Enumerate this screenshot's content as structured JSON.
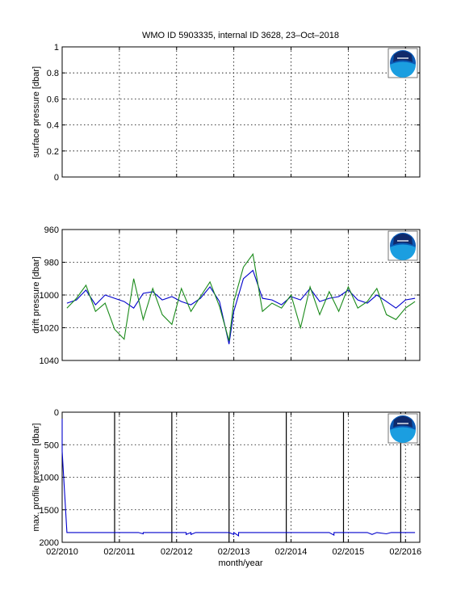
{
  "title": "WMO ID 5903335, internal ID 3628, 23–Oct–2018",
  "colors": {
    "blue": "#0000cc",
    "green": "#1a8a1a",
    "grid": "#000000",
    "noaa_blue": "#0a5ab5",
    "noaa_navy": "#102a6b"
  },
  "icons": [
    "noaa-logo-icon",
    "noaa-logo-icon",
    "noaa-logo-icon"
  ],
  "chart_data": [
    {
      "type": "line",
      "ylabel": "surface pressure [dbar]",
      "ylim": [
        0,
        1
      ],
      "yticks": [
        "0",
        "0.2",
        "0.4",
        "0.6",
        "0.8",
        "1"
      ],
      "xlim": [
        "2010-02",
        "2016-05"
      ],
      "grid": true,
      "series": []
    },
    {
      "type": "line",
      "ylabel": "drift pressure [dbar]",
      "ylim": [
        960,
        1040
      ],
      "y_reversed": true,
      "yticks": [
        "960",
        "980",
        "1000",
        "1020",
        "1040"
      ],
      "xlim": [
        "2010-02",
        "2016-05"
      ],
      "grid": true,
      "series": [
        {
          "color": "blue",
          "x": [
            "2010-03",
            "2010-05",
            "2010-07",
            "2010-09",
            "2010-11",
            "2011-01",
            "2011-03",
            "2011-05",
            "2011-07",
            "2011-09",
            "2011-11",
            "2012-01",
            "2012-03",
            "2012-05",
            "2012-07",
            "2012-09",
            "2012-11",
            "2013-01",
            "2013-02",
            "2013-04",
            "2013-06",
            "2013-08",
            "2013-10",
            "2013-12",
            "2014-02",
            "2014-04",
            "2014-06",
            "2014-08",
            "2014-10",
            "2014-12",
            "2015-02",
            "2015-04",
            "2015-06",
            "2015-08",
            "2015-10",
            "2015-12",
            "2016-02",
            "2016-04"
          ],
          "y": [
            1005,
            1003,
            997,
            1006,
            1000,
            1002,
            1004,
            1008,
            999,
            998,
            1003,
            1001,
            1004,
            1006,
            1002,
            995,
            1004,
            1030,
            1010,
            990,
            985,
            1002,
            1003,
            1006,
            1001,
            1003,
            996,
            1004,
            1002,
            1001,
            997,
            1003,
            1005,
            1000,
            1004,
            1008,
            1003,
            1002
          ]
        },
        {
          "color": "green",
          "x": [
            "2010-03",
            "2010-05",
            "2010-07",
            "2010-09",
            "2010-11",
            "2011-01",
            "2011-03",
            "2011-05",
            "2011-07",
            "2011-09",
            "2011-11",
            "2012-01",
            "2012-03",
            "2012-05",
            "2012-07",
            "2012-09",
            "2012-11",
            "2013-01",
            "2013-02",
            "2013-04",
            "2013-06",
            "2013-08",
            "2013-10",
            "2013-12",
            "2014-02",
            "2014-04",
            "2014-06",
            "2014-08",
            "2014-10",
            "2014-12",
            "2015-02",
            "2015-04",
            "2015-06",
            "2015-08",
            "2015-10",
            "2015-12",
            "2016-02",
            "2016-04"
          ],
          "y": [
            1008,
            1002,
            994,
            1010,
            1005,
            1021,
            1027,
            990,
            1015,
            996,
            1012,
            1018,
            996,
            1010,
            1001,
            992,
            1007,
            1028,
            1004,
            983,
            975,
            1010,
            1005,
            1008,
            1000,
            1020,
            995,
            1012,
            998,
            1010,
            995,
            1008,
            1004,
            996,
            1012,
            1015,
            1008,
            1004
          ]
        }
      ]
    },
    {
      "type": "line",
      "ylabel": "max. profile pressure [dbar]",
      "xlabel": "month/year",
      "ylim": [
        0,
        2000
      ],
      "y_reversed": true,
      "yticks": [
        "0",
        "500",
        "1000",
        "1500",
        "2000"
      ],
      "xlim": [
        "2010-02",
        "2016-05"
      ],
      "xticks": [
        "02/2010",
        "02/2011",
        "02/2012",
        "02/2013",
        "02/2014",
        "02/2015",
        "02/2016"
      ],
      "grid": true,
      "vlines": [
        "2011-01",
        "2012-01",
        "2013-01",
        "2014-01",
        "2015-01",
        "2016-01"
      ],
      "series": [
        {
          "color": "blue",
          "x": [
            "2010-02",
            "2010-02",
            "2010-03",
            "2010-06",
            "2011-01",
            "2011-06",
            "2011-07",
            "2011-07",
            "2011-09",
            "2012-04",
            "2012-04",
            "2012-05",
            "2012-05",
            "2012-06",
            "2013-01",
            "2013-02",
            "2013-02",
            "2013-03",
            "2013-03",
            "2013-04",
            "2014-04",
            "2014-10",
            "2014-11",
            "2014-11",
            "2015-06",
            "2015-07",
            "2015-08",
            "2015-10",
            "2015-11",
            "2016-04"
          ],
          "y": [
            100,
            600,
            1850,
            1850,
            1850,
            1850,
            1870,
            1850,
            1850,
            1850,
            1880,
            1850,
            1880,
            1850,
            1850,
            1880,
            1850,
            1900,
            1850,
            1850,
            1850,
            1850,
            1890,
            1850,
            1850,
            1880,
            1850,
            1870,
            1850,
            1850
          ]
        }
      ]
    }
  ]
}
